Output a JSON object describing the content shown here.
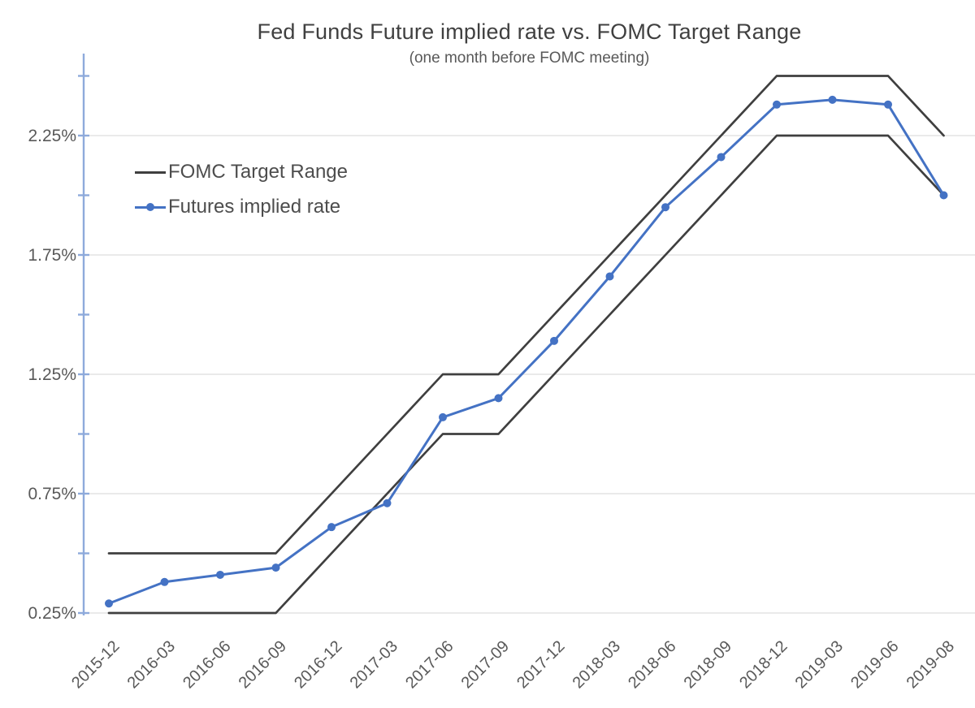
{
  "chart": {
    "title": "Fed Funds Future implied rate vs. FOMC Target Range",
    "subtitle": "(one month before FOMC meeting)"
  },
  "legend": {
    "items": [
      {
        "label": "FOMC Target Range",
        "color": "#3f3f3f",
        "marker": "line"
      },
      {
        "label": "Futures implied rate",
        "color": "#4472c4",
        "marker": "line-dot"
      }
    ]
  },
  "colors": {
    "blue_series": "#4472c4",
    "black_series": "#3f3f3f",
    "axis_line": "#8eaadb",
    "gridline": "#e4e4e4",
    "title_text": "#404040",
    "axis_text": "#595959",
    "legend_text": "#4d4d4d"
  },
  "chart_data": {
    "type": "line",
    "title": "Fed Funds Future implied rate vs. FOMC Target Range",
    "subtitle": "(one month before FOMC meeting)",
    "categories": [
      "2015-12",
      "2016-03",
      "2016-06",
      "2016-09",
      "2016-12",
      "2017-03",
      "2017-06",
      "2017-09",
      "2017-12",
      "2018-03",
      "2018-06",
      "2018-09",
      "2018-12",
      "2019-03",
      "2019-06",
      "2019-08"
    ],
    "series": [
      {
        "name": "FOMC Target Range (upper bound)",
        "color": "#3f3f3f",
        "marker": false,
        "values": [
          0.5,
          0.5,
          0.5,
          0.5,
          0.75,
          1.0,
          1.25,
          1.25,
          1.5,
          1.75,
          2.0,
          2.25,
          2.5,
          2.5,
          2.5,
          2.25
        ]
      },
      {
        "name": "FOMC Target Range (lower bound)",
        "color": "#3f3f3f",
        "marker": false,
        "values": [
          0.25,
          0.25,
          0.25,
          0.25,
          0.5,
          0.75,
          1.0,
          1.0,
          1.25,
          1.5,
          1.75,
          2.0,
          2.25,
          2.25,
          2.25,
          2.0
        ]
      },
      {
        "name": "Futures implied rate",
        "color": "#4472c4",
        "marker": true,
        "values": [
          0.29,
          0.38,
          0.41,
          0.44,
          0.61,
          0.71,
          1.07,
          1.15,
          1.39,
          1.66,
          1.95,
          2.16,
          2.38,
          2.4,
          2.38,
          2.0
        ]
      }
    ],
    "y_axis": {
      "min": 0.25,
      "max": 2.5,
      "minor_tick_step": 0.25,
      "labeled_ticks": [
        {
          "value": 2.25,
          "label": "2.25%"
        },
        {
          "value": 1.75,
          "label": "1.75%"
        },
        {
          "value": 1.25,
          "label": "1.25%"
        },
        {
          "value": 0.75,
          "label": "0.75%"
        },
        {
          "value": 0.25,
          "label": "0.25%"
        }
      ]
    },
    "x_axis": {
      "label_rotation_deg": -45
    },
    "grid": true,
    "legend_position": "inside-top-left"
  }
}
